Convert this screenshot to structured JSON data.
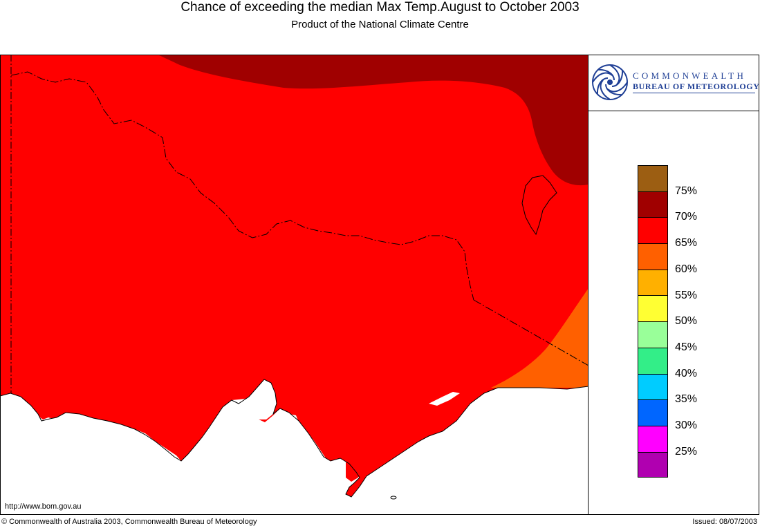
{
  "header": {
    "title": "Chance of exceeding the median Max Temp.August to October 2003",
    "subtitle": "Product of the National Climate Centre"
  },
  "logo": {
    "line1": "COMMONWEALTH",
    "line2": "BUREAU OF METEOROLOGY",
    "accent_color": "#1f3f95"
  },
  "legend": {
    "swatches": [
      {
        "color": "#9c5e12"
      },
      {
        "color": "#a00000"
      },
      {
        "color": "#ff0000"
      },
      {
        "color": "#ff6000"
      },
      {
        "color": "#ffb000"
      },
      {
        "color": "#ffff33"
      },
      {
        "color": "#99ff99"
      },
      {
        "color": "#33ee88"
      },
      {
        "color": "#00ccff"
      },
      {
        "color": "#0066ff"
      },
      {
        "color": "#ff00ff"
      },
      {
        "color": "#b000b0"
      }
    ],
    "labels": [
      "75%",
      "70%",
      "65%",
      "60%",
      "55%",
      "50%",
      "45%",
      "40%",
      "35%",
      "30%",
      "25%"
    ]
  },
  "map": {
    "colors": {
      "sea": "#ffffff",
      "zone_65_70": "#ff0000",
      "zone_70_75": "#a00000",
      "zone_60_65": "#ff6000"
    }
  },
  "footer": {
    "url": "http://www.bom.gov.au",
    "copyright": "© Commonwealth of Australia 2003, Commonwealth Bureau of Meteorology",
    "issued": "Issued: 08/07/2003"
  }
}
